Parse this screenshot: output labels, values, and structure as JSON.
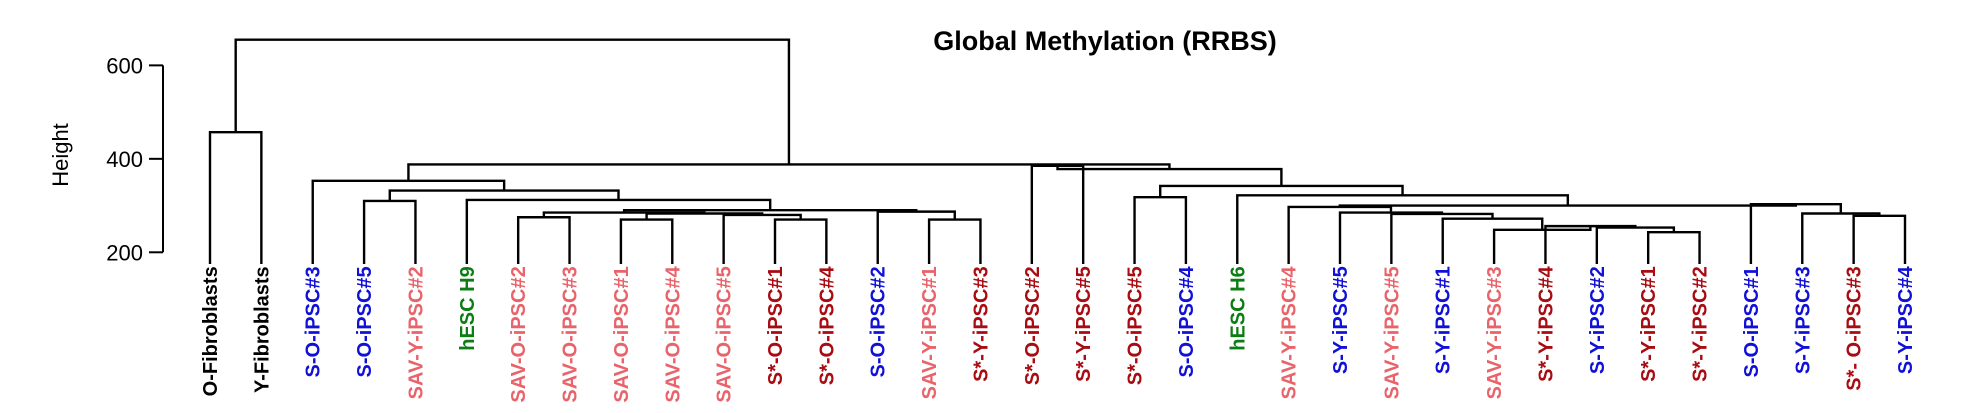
{
  "chart_data": {
    "type": "dendrogram",
    "title": "Global Methylation (RRBS)",
    "ylabel": "Height",
    "ylim": [
      130,
      665
    ],
    "yticks": [
      200,
      400,
      600
    ],
    "colors": {
      "black": "#000000",
      "blue": "#1010d8",
      "pink": "#e8646a",
      "darkred": "#a80c12",
      "green": "#0b7d12"
    },
    "leaves": [
      {
        "label": "O-Fibroblasts",
        "color": "black"
      },
      {
        "label": "Y-Fibroblasts",
        "color": "black"
      },
      {
        "label": "S-O-iPSC#3",
        "color": "blue"
      },
      {
        "label": "S-O-iPSC#5",
        "color": "blue"
      },
      {
        "label": "SAV-Y-iPSC#2",
        "color": "pink"
      },
      {
        "label": "hESC H9",
        "color": "green"
      },
      {
        "label": "SAV-O-iPSC#2",
        "color": "pink"
      },
      {
        "label": "SAV-O-iPSC#3",
        "color": "pink"
      },
      {
        "label": "SAV-O-iPSC#1",
        "color": "pink"
      },
      {
        "label": "SAV-O-iPSC#4",
        "color": "pink"
      },
      {
        "label": "SAV-O-iPSC#5",
        "color": "pink"
      },
      {
        "label": "S*-O-iPSC#1",
        "color": "darkred"
      },
      {
        "label": "S*-O-iPSC#4",
        "color": "darkred"
      },
      {
        "label": "S-O-iPSC#2",
        "color": "blue"
      },
      {
        "label": "SAV-Y-iPSC#1",
        "color": "pink"
      },
      {
        "label": "S*-Y-iPSC#3",
        "color": "darkred"
      },
      {
        "label": "S*-O-iPSC#2",
        "color": "darkred"
      },
      {
        "label": "S*-Y-iPSC#5",
        "color": "darkred"
      },
      {
        "label": "S*-O-iPSC#5",
        "color": "darkred"
      },
      {
        "label": "S-O-iPSC#4",
        "color": "blue"
      },
      {
        "label": "hESC H6",
        "color": "green"
      },
      {
        "label": "SAV-Y-iPSC#4",
        "color": "pink"
      },
      {
        "label": "S-Y-iPSC#5",
        "color": "blue"
      },
      {
        "label": "SAV-Y-iPSC#5",
        "color": "pink"
      },
      {
        "label": "S-Y-iPSC#1",
        "color": "blue"
      },
      {
        "label": "SAV-Y-iPSC#3",
        "color": "pink"
      },
      {
        "label": "S*-Y-iPSC#4",
        "color": "darkred"
      },
      {
        "label": "S-Y-iPSC#2",
        "color": "blue"
      },
      {
        "label": "S*-Y-iPSC#1",
        "color": "darkred"
      },
      {
        "label": "S*-Y-iPSC#2",
        "color": "darkred"
      },
      {
        "label": "S-O-iPSC#1",
        "color": "blue"
      },
      {
        "label": "S-Y-iPSC#3",
        "color": "blue"
      },
      {
        "label": "S*- O-iPSC#3",
        "color": "darkred"
      },
      {
        "label": "S-Y-iPSC#4",
        "color": "blue"
      }
    ],
    "merges": [
      {
        "children": [
          "L6",
          "L7"
        ],
        "height": 275
      },
      {
        "children": [
          "L11",
          "L12"
        ],
        "height": 270
      },
      {
        "children": [
          "L10",
          "M1"
        ],
        "height": 280
      },
      {
        "children": [
          "L8",
          "L9"
        ],
        "height": 270
      },
      {
        "children": [
          "M3",
          "M2"
        ],
        "height": 283
      },
      {
        "children": [
          "M0",
          "M4"
        ],
        "height": 285
      },
      {
        "children": [
          "L14",
          "L15"
        ],
        "height": 270
      },
      {
        "children": [
          "L13",
          "M6"
        ],
        "height": 287
      },
      {
        "children": [
          "M5",
          "M7"
        ],
        "height": 290
      },
      {
        "children": [
          "L5",
          "M8"
        ],
        "height": 312
      },
      {
        "children": [
          "L3",
          "L4"
        ],
        "height": 310
      },
      {
        "children": [
          "M10",
          "M9"
        ],
        "height": 332
      },
      {
        "children": [
          "L2",
          "M11"
        ],
        "height": 353
      },
      {
        "children": [
          "L16",
          "L17"
        ],
        "height": 385
      },
      {
        "children": [
          "L18",
          "L19"
        ],
        "height": 318
      },
      {
        "children": [
          "L28",
          "L29"
        ],
        "height": 243
      },
      {
        "children": [
          "L27",
          "M15"
        ],
        "height": 253
      },
      {
        "children": [
          "L26",
          "M16"
        ],
        "height": 256
      },
      {
        "children": [
          "L25",
          "M17"
        ],
        "height": 248
      },
      {
        "children": [
          "L24",
          "M18"
        ],
        "height": 272
      },
      {
        "children": [
          "L23",
          "M19"
        ],
        "height": 282
      },
      {
        "children": [
          "L22",
          "M20"
        ],
        "height": 285
      },
      {
        "children": [
          "L21",
          "M21"
        ],
        "height": 297
      },
      {
        "children": [
          "L32",
          "L33"
        ],
        "height": 278
      },
      {
        "children": [
          "L31",
          "M23"
        ],
        "height": 283
      },
      {
        "children": [
          "L30",
          "M24"
        ],
        "height": 303
      },
      {
        "children": [
          "M22",
          "M25"
        ],
        "height": 300
      },
      {
        "children": [
          "L20",
          "M26"
        ],
        "height": 322
      },
      {
        "children": [
          "M14",
          "M27"
        ],
        "height": 342
      },
      {
        "children": [
          "M13",
          "M28"
        ],
        "height": 378
      },
      {
        "children": [
          "M12",
          "M29"
        ],
        "height": 388
      },
      {
        "children": [
          "L0",
          "L1"
        ],
        "height": 457
      },
      {
        "children": [
          "M31",
          "M30"
        ],
        "height": 655
      }
    ]
  }
}
